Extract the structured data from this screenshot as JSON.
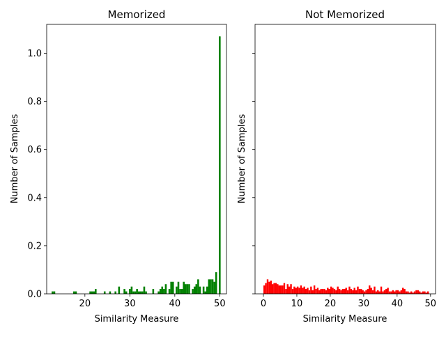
{
  "chart_data": [
    {
      "type": "bar",
      "title": "Memorized",
      "xlabel": "Similarity Measure",
      "ylabel": "Number of Samples",
      "color": "#008000",
      "xlim": [
        11.5,
        51.5
      ],
      "ylim": [
        0,
        1.12
      ],
      "xticks": [
        20,
        30,
        40,
        50
      ],
      "xtick_labels": [
        "20",
        "30",
        "40",
        "50"
      ],
      "yticks": [
        0.0,
        0.2,
        0.4,
        0.6,
        0.8,
        1.0
      ],
      "ytick_labels": [
        "0.0",
        "0.2",
        "0.4",
        "0.6",
        "0.8",
        "1.0"
      ],
      "bin_width": 0.4,
      "bins": [
        {
          "x": 12.6,
          "y": 0.01
        },
        {
          "x": 13.0,
          "y": 0.01
        },
        {
          "x": 17.4,
          "y": 0.01
        },
        {
          "x": 17.8,
          "y": 0.01
        },
        {
          "x": 21.0,
          "y": 0.01
        },
        {
          "x": 21.4,
          "y": 0.01
        },
        {
          "x": 21.8,
          "y": 0.01
        },
        {
          "x": 22.2,
          "y": 0.02
        },
        {
          "x": 24.2,
          "y": 0.01
        },
        {
          "x": 25.4,
          "y": 0.01
        },
        {
          "x": 26.6,
          "y": 0.01
        },
        {
          "x": 27.4,
          "y": 0.03
        },
        {
          "x": 28.6,
          "y": 0.02
        },
        {
          "x": 29.0,
          "y": 0.01
        },
        {
          "x": 29.8,
          "y": 0.02
        },
        {
          "x": 30.2,
          "y": 0.03
        },
        {
          "x": 30.6,
          "y": 0.01
        },
        {
          "x": 31.0,
          "y": 0.01
        },
        {
          "x": 31.4,
          "y": 0.02
        },
        {
          "x": 31.8,
          "y": 0.01
        },
        {
          "x": 32.2,
          "y": 0.01
        },
        {
          "x": 32.6,
          "y": 0.01
        },
        {
          "x": 33.0,
          "y": 0.03
        },
        {
          "x": 33.4,
          "y": 0.01
        },
        {
          "x": 35.0,
          "y": 0.02
        },
        {
          "x": 36.2,
          "y": 0.01
        },
        {
          "x": 36.6,
          "y": 0.02
        },
        {
          "x": 37.0,
          "y": 0.03
        },
        {
          "x": 37.4,
          "y": 0.02
        },
        {
          "x": 37.8,
          "y": 0.04
        },
        {
          "x": 38.6,
          "y": 0.02
        },
        {
          "x": 39.0,
          "y": 0.05
        },
        {
          "x": 39.4,
          "y": 0.05
        },
        {
          "x": 40.2,
          "y": 0.03
        },
        {
          "x": 40.6,
          "y": 0.05
        },
        {
          "x": 41.0,
          "y": 0.02
        },
        {
          "x": 41.4,
          "y": 0.02
        },
        {
          "x": 41.8,
          "y": 0.05
        },
        {
          "x": 42.2,
          "y": 0.04
        },
        {
          "x": 42.6,
          "y": 0.04
        },
        {
          "x": 43.0,
          "y": 0.04
        },
        {
          "x": 43.8,
          "y": 0.02
        },
        {
          "x": 44.2,
          "y": 0.03
        },
        {
          "x": 44.6,
          "y": 0.04
        },
        {
          "x": 45.0,
          "y": 0.06
        },
        {
          "x": 45.4,
          "y": 0.03
        },
        {
          "x": 46.2,
          "y": 0.03
        },
        {
          "x": 46.6,
          "y": 0.01
        },
        {
          "x": 47.0,
          "y": 0.03
        },
        {
          "x": 47.4,
          "y": 0.06
        },
        {
          "x": 47.8,
          "y": 0.06
        },
        {
          "x": 48.2,
          "y": 0.06
        },
        {
          "x": 48.6,
          "y": 0.05
        },
        {
          "x": 49.0,
          "y": 0.09
        },
        {
          "x": 49.8,
          "y": 1.07
        }
      ]
    },
    {
      "type": "bar",
      "title": "Not Memorized",
      "xlabel": "Similarity Measure",
      "ylabel": "Number of Samples",
      "color": "#ff0000",
      "xlim": [
        -2.5,
        51.5
      ],
      "ylim": [
        0,
        1.12
      ],
      "shared_y": true,
      "xticks": [
        0,
        10,
        20,
        30,
        40,
        50
      ],
      "xtick_labels": [
        "0",
        "10",
        "20",
        "30",
        "40",
        "50"
      ],
      "yticks": [
        0.0,
        0.2,
        0.4,
        0.6,
        0.8,
        1.0
      ],
      "bin_width": 0.5,
      "bins": [
        {
          "x": 0.0,
          "y": 0.035
        },
        {
          "x": 0.5,
          "y": 0.045
        },
        {
          "x": 1.0,
          "y": 0.06
        },
        {
          "x": 1.5,
          "y": 0.05
        },
        {
          "x": 2.0,
          "y": 0.055
        },
        {
          "x": 2.5,
          "y": 0.04
        },
        {
          "x": 3.0,
          "y": 0.045
        },
        {
          "x": 3.5,
          "y": 0.045
        },
        {
          "x": 4.0,
          "y": 0.04
        },
        {
          "x": 4.5,
          "y": 0.035
        },
        {
          "x": 5.0,
          "y": 0.035
        },
        {
          "x": 5.5,
          "y": 0.035
        },
        {
          "x": 6.0,
          "y": 0.045
        },
        {
          "x": 6.5,
          "y": 0.02
        },
        {
          "x": 7.0,
          "y": 0.04
        },
        {
          "x": 7.5,
          "y": 0.03
        },
        {
          "x": 8.0,
          "y": 0.04
        },
        {
          "x": 8.5,
          "y": 0.02
        },
        {
          "x": 9.0,
          "y": 0.03
        },
        {
          "x": 9.5,
          "y": 0.025
        },
        {
          "x": 10.0,
          "y": 0.03
        },
        {
          "x": 10.5,
          "y": 0.025
        },
        {
          "x": 11.0,
          "y": 0.035
        },
        {
          "x": 11.5,
          "y": 0.025
        },
        {
          "x": 12.0,
          "y": 0.03
        },
        {
          "x": 12.5,
          "y": 0.02
        },
        {
          "x": 13.0,
          "y": 0.025
        },
        {
          "x": 13.5,
          "y": 0.015
        },
        {
          "x": 14.0,
          "y": 0.03
        },
        {
          "x": 14.5,
          "y": 0.015
        },
        {
          "x": 15.0,
          "y": 0.035
        },
        {
          "x": 15.5,
          "y": 0.02
        },
        {
          "x": 16.0,
          "y": 0.025
        },
        {
          "x": 16.5,
          "y": 0.015
        },
        {
          "x": 17.0,
          "y": 0.02
        },
        {
          "x": 17.5,
          "y": 0.02
        },
        {
          "x": 18.0,
          "y": 0.02
        },
        {
          "x": 18.5,
          "y": 0.015
        },
        {
          "x": 19.0,
          "y": 0.025
        },
        {
          "x": 19.5,
          "y": 0.02
        },
        {
          "x": 20.0,
          "y": 0.03
        },
        {
          "x": 20.5,
          "y": 0.025
        },
        {
          "x": 21.0,
          "y": 0.02
        },
        {
          "x": 21.5,
          "y": 0.015
        },
        {
          "x": 22.0,
          "y": 0.03
        },
        {
          "x": 22.5,
          "y": 0.02
        },
        {
          "x": 23.0,
          "y": 0.015
        },
        {
          "x": 23.5,
          "y": 0.02
        },
        {
          "x": 24.0,
          "y": 0.02
        },
        {
          "x": 24.5,
          "y": 0.025
        },
        {
          "x": 25.0,
          "y": 0.015
        },
        {
          "x": 25.5,
          "y": 0.03
        },
        {
          "x": 26.0,
          "y": 0.02
        },
        {
          "x": 26.5,
          "y": 0.015
        },
        {
          "x": 27.0,
          "y": 0.025
        },
        {
          "x": 27.5,
          "y": 0.015
        },
        {
          "x": 28.0,
          "y": 0.03
        },
        {
          "x": 28.5,
          "y": 0.02
        },
        {
          "x": 29.0,
          "y": 0.02
        },
        {
          "x": 29.5,
          "y": 0.015
        },
        {
          "x": 30.0,
          "y": 0.01
        },
        {
          "x": 30.5,
          "y": 0.015
        },
        {
          "x": 31.0,
          "y": 0.02
        },
        {
          "x": 31.5,
          "y": 0.035
        },
        {
          "x": 32.0,
          "y": 0.025
        },
        {
          "x": 32.5,
          "y": 0.015
        },
        {
          "x": 33.0,
          "y": 0.03
        },
        {
          "x": 33.5,
          "y": 0.01
        },
        {
          "x": 34.0,
          "y": 0.015
        },
        {
          "x": 34.5,
          "y": 0.01
        },
        {
          "x": 35.0,
          "y": 0.03
        },
        {
          "x": 35.5,
          "y": 0.01
        },
        {
          "x": 36.0,
          "y": 0.015
        },
        {
          "x": 36.5,
          "y": 0.02
        },
        {
          "x": 37.0,
          "y": 0.025
        },
        {
          "x": 37.5,
          "y": 0.01
        },
        {
          "x": 38.0,
          "y": 0.01
        },
        {
          "x": 38.5,
          "y": 0.015
        },
        {
          "x": 39.0,
          "y": 0.01
        },
        {
          "x": 39.5,
          "y": 0.015
        },
        {
          "x": 40.0,
          "y": 0.015
        },
        {
          "x": 40.5,
          "y": 0.01
        },
        {
          "x": 41.0,
          "y": 0.015
        },
        {
          "x": 41.5,
          "y": 0.025
        },
        {
          "x": 42.0,
          "y": 0.02
        },
        {
          "x": 42.5,
          "y": 0.01
        },
        {
          "x": 43.0,
          "y": 0.01
        },
        {
          "x": 43.5,
          "y": 0.005
        },
        {
          "x": 44.0,
          "y": 0.01
        },
        {
          "x": 44.5,
          "y": 0.005
        },
        {
          "x": 45.0,
          "y": 0.01
        },
        {
          "x": 45.5,
          "y": 0.015
        },
        {
          "x": 46.0,
          "y": 0.015
        },
        {
          "x": 46.5,
          "y": 0.01
        },
        {
          "x": 47.0,
          "y": 0.005
        },
        {
          "x": 47.5,
          "y": 0.01
        },
        {
          "x": 48.0,
          "y": 0.01
        },
        {
          "x": 48.5,
          "y": 0.005
        },
        {
          "x": 49.0,
          "y": 0.01
        }
      ]
    }
  ]
}
